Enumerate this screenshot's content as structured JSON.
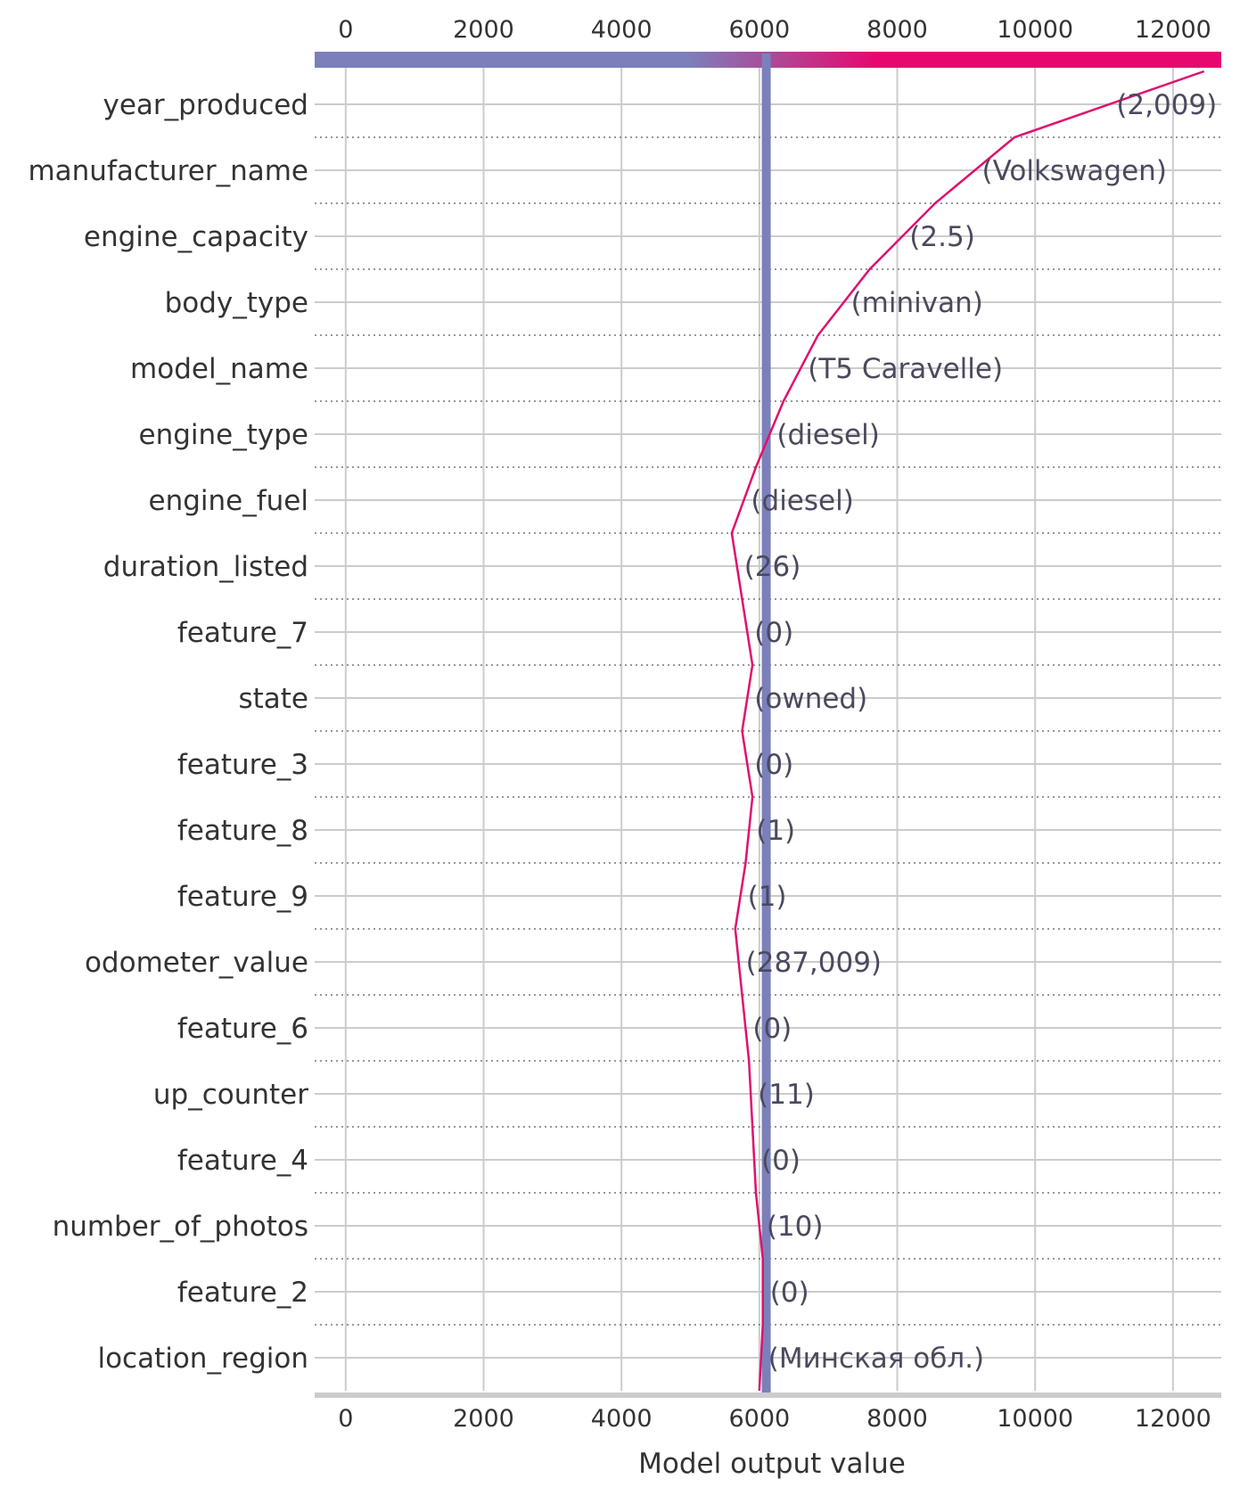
{
  "chart_data": {
    "type": "line",
    "chart_kind": "decision_plot",
    "xlabel": "Model output value",
    "xlim": [
      -450,
      12700
    ],
    "x_ticks": [
      0,
      2000,
      4000,
      6000,
      8000,
      10000,
      12000
    ],
    "base_value": 6100,
    "grid": true,
    "colors": {
      "line": "#e0106e",
      "base_line": "#7b80bb",
      "bar_start": "#7b80bb",
      "bar_end": "#e8076e",
      "grid": "#cccccc",
      "row_separator": "#777777",
      "axis_bar": "#cccccc"
    },
    "features": [
      {
        "name": "year_produced",
        "value_label": "(2,009)",
        "x": 9700
      },
      {
        "name": "manufacturer_name",
        "value_label": "(Volkswagen)",
        "x": 8550
      },
      {
        "name": "engine_capacity",
        "value_label": "(2.5)",
        "x": 7600
      },
      {
        "name": "body_type",
        "value_label": "(minivan)",
        "x": 6850
      },
      {
        "name": "model_name",
        "value_label": "(T5 Caravelle)",
        "x": 6350
      },
      {
        "name": "engine_type",
        "value_label": "(diesel)",
        "x": 5950
      },
      {
        "name": "engine_fuel",
        "value_label": "(diesel)",
        "x": 5600
      },
      {
        "name": "duration_listed",
        "value_label": "(26)",
        "x": 5750
      },
      {
        "name": "feature_7",
        "value_label": "(0)",
        "x": 5900
      },
      {
        "name": "state",
        "value_label": "(owned)",
        "x": 5750
      },
      {
        "name": "feature_3",
        "value_label": "(0)",
        "x": 5900
      },
      {
        "name": "feature_8",
        "value_label": "(1)",
        "x": 5800
      },
      {
        "name": "feature_9",
        "value_label": "(1)",
        "x": 5650
      },
      {
        "name": "odometer_value",
        "value_label": "(287,009)",
        "x": 5750
      },
      {
        "name": "feature_6",
        "value_label": "(0)",
        "x": 5850
      },
      {
        "name": "up_counter",
        "value_label": "(11)",
        "x": 5900
      },
      {
        "name": "feature_4",
        "value_label": "(0)",
        "x": 5950
      },
      {
        "name": "number_of_photos",
        "value_label": "(10)",
        "x": 6050
      },
      {
        "name": "feature_2",
        "value_label": "(0)",
        "x": 6050
      },
      {
        "name": "location_region",
        "value_label": "(Минская обл.)",
        "x": 6000
      }
    ],
    "output_value": 12450
  }
}
